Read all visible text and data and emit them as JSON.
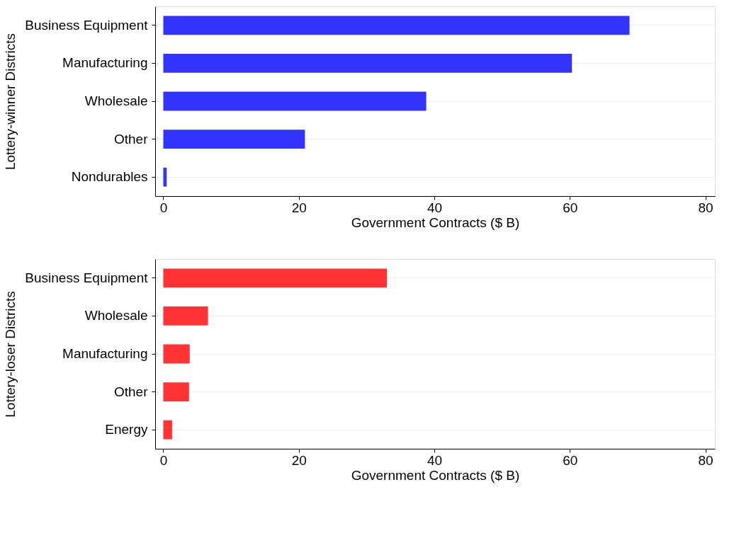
{
  "chart_data": [
    {
      "type": "bar",
      "orientation": "horizontal",
      "ylabel": "Lottery-winner Districts",
      "xlabel": "Government Contracts ($ B)",
      "categories": [
        "Business Equipment",
        "Manufacturing",
        "Wholesale",
        "Other",
        "Nondurables"
      ],
      "series": [
        {
          "color": "#3333ff",
          "values": [
            68.8,
            60.3,
            38.8,
            20.9,
            0.5
          ]
        }
      ],
      "xlim": [
        -1.2,
        81.4
      ],
      "xticks": [
        0,
        20,
        40,
        60,
        80
      ],
      "grid": "y",
      "legend": false
    },
    {
      "type": "bar",
      "orientation": "horizontal",
      "ylabel": "Lottery-loser Districts",
      "xlabel": "Government Contracts ($ B)",
      "categories": [
        "Business Equipment",
        "Wholesale",
        "Manufacturing",
        "Other",
        "Energy"
      ],
      "series": [
        {
          "color": "#ff3333",
          "values": [
            33.0,
            6.6,
            3.9,
            3.8,
            1.3
          ]
        }
      ],
      "xlim": [
        -1.2,
        81.4
      ],
      "xticks": [
        0,
        20,
        40,
        60,
        80
      ],
      "grid": "y",
      "legend": false
    }
  ]
}
